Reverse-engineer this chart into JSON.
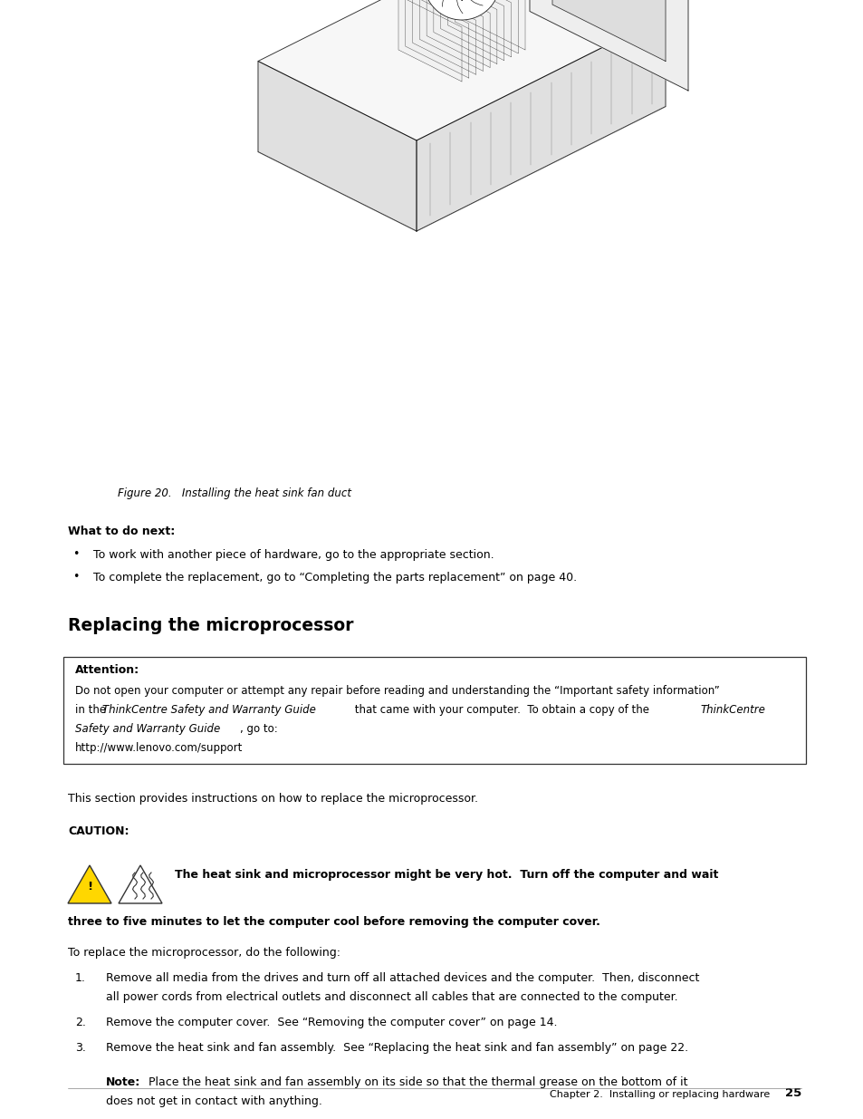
{
  "bg_color": "#ffffff",
  "page_width": 9.54,
  "page_height": 12.35,
  "fig_caption": "Figure 20.   Installing the heat sink fan duct",
  "what_to_do_next_header": "What to do next:",
  "bullet1": "To work with another piece of hardware, go to the appropriate section.",
  "bullet2": "To complete the replacement, go to “Completing the parts replacement” on page 40.",
  "section_header": "Replacing the microprocessor",
  "attention_header": "Attention:",
  "attention_line1": "Do not open your computer or attempt any repair before reading and understanding the “Important safety information”",
  "attention_line2_normal1": "in the ",
  "attention_line2_italic": "ThinkCentre Safety and Warranty Guide",
  "attention_line2_normal2": " that came with your computer.  To obtain a copy of the ",
  "attention_line2_italic2": "ThinkCentre",
  "attention_line3_italic": "Safety and Warranty Guide",
  "attention_line3_normal": ", go to:",
  "attention_line4": "http://www.lenovo.com/support",
  "intro_text": "This section provides instructions on how to replace the microprocessor.",
  "caution_label": "CAUTION:",
  "caution_line1": "The heat sink and microprocessor might be very hot.  Turn off the computer and wait",
  "caution_line2": "three to five minutes to let the computer cool before removing the computer cover.",
  "replace_intro": "To replace the microprocessor, do the following:",
  "step1_line1": "Remove all media from the drives and turn off all attached devices and the computer.  Then, disconnect",
  "step1_line2": "all power cords from electrical outlets and disconnect all cables that are connected to the computer.",
  "step2": "Remove the computer cover.  See “Removing the computer cover” on page 14.",
  "step3": "Remove the heat sink and fan assembly.  See “Replacing the heat sink and fan assembly” on page 22.",
  "note_label": "Note:",
  "note_line1": "Place the heat sink and fan assembly on its side so that the thermal grease on the bottom of it",
  "note_line2": "does not get in contact with anything.",
  "footer_text": "Chapter 2.  Installing or replacing hardware",
  "page_number": "25",
  "lm": 0.75,
  "rm": 8.85,
  "dpi": 100
}
